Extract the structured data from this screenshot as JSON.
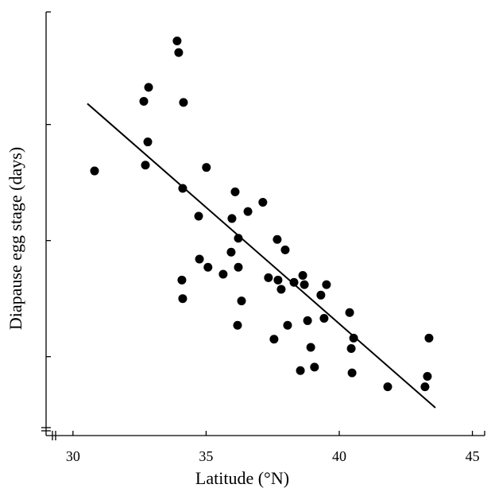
{
  "chart_data": {
    "type": "scatter",
    "x_label": "Latitude (°N)",
    "y_label": "Diapause egg stage (days)",
    "x": [
      30.81,
      32.66,
      32.84,
      32.81,
      32.72,
      33.91,
      33.97,
      34.15,
      34.12,
      34.72,
      35.01,
      34.75,
      35.07,
      35.64,
      34.09,
      34.12,
      36.09,
      35.97,
      36.21,
      35.94,
      36.21,
      36.33,
      36.18,
      36.57,
      37.13,
      37.67,
      37.97,
      37.34,
      37.7,
      37.82,
      38.3,
      38.63,
      38.69,
      39.31,
      39.52,
      37.55,
      38.06,
      38.81,
      39.43,
      38.93,
      38.54,
      39.07,
      40.39,
      40.45,
      40.54,
      40.48,
      41.82,
      43.22,
      43.31,
      43.37
    ],
    "values": [
      2.6,
      3.2,
      3.32,
      2.85,
      2.65,
      3.72,
      3.62,
      3.19,
      2.45,
      2.21,
      2.63,
      1.84,
      1.77,
      1.71,
      1.66,
      1.5,
      2.42,
      2.19,
      2.02,
      1.9,
      1.77,
      1.48,
      1.27,
      2.25,
      2.33,
      2.01,
      1.92,
      1.68,
      1.66,
      1.58,
      1.64,
      1.7,
      1.62,
      1.53,
      1.62,
      1.15,
      1.27,
      1.31,
      1.33,
      1.08,
      0.88,
      0.91,
      1.38,
      1.07,
      1.16,
      0.86,
      0.74,
      0.74,
      0.83,
      1.16
    ],
    "color": "#000000",
    "fit_line": {
      "x": [
        30.54,
        43.61
      ],
      "y": [
        3.18,
        0.56
      ]
    },
    "xlim": [
      28.99,
      45.46
    ],
    "xticks": [
      30,
      35,
      40,
      45
    ],
    "ylim": [
      0.32,
      3.97
    ],
    "yticks": [
      1,
      2,
      3
    ],
    "show_ytick_labels": false,
    "grid": false
  }
}
